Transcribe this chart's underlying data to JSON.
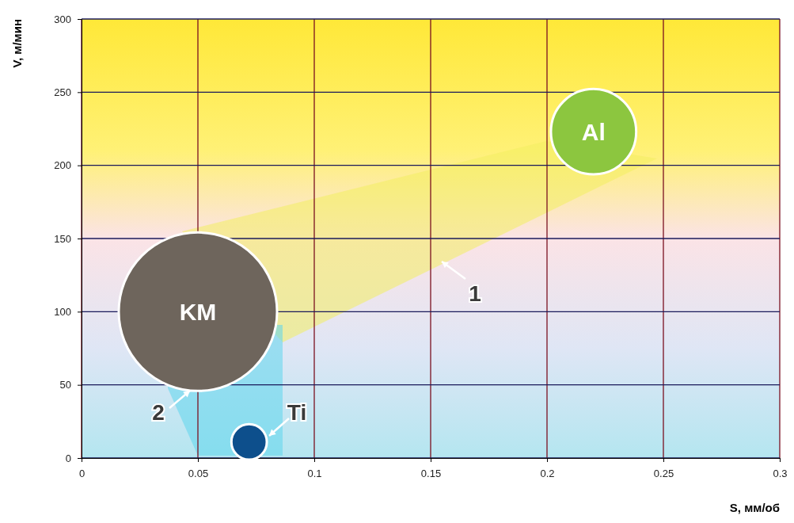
{
  "chart_data": {
    "type": "bubble",
    "xlabel": "S, мм/об",
    "ylabel": "V, м/мин",
    "x": [
      0.05,
      0.22,
      0.072
    ],
    "values": [
      100,
      223,
      11
    ],
    "sizes": [
      1,
      0.29,
      0.05
    ],
    "colors": [
      "#6e655c",
      "#8cc63f",
      "#0d4f8c"
    ],
    "xlim": [
      0,
      0.3
    ],
    "xticks": [
      0,
      0.05,
      0.1,
      0.15,
      0.2,
      0.25,
      0.3
    ],
    "ylim": [
      0,
      300
    ],
    "yticks": [
      0,
      50,
      100,
      150,
      200,
      250,
      300
    ],
    "grid": true,
    "annotations": [
      {
        "text": "KM",
        "x": 0.05,
        "y": 100
      },
      {
        "text": "Al",
        "x": 0.22,
        "y": 223
      },
      "Ti",
      "1",
      "2"
    ]
  }
}
